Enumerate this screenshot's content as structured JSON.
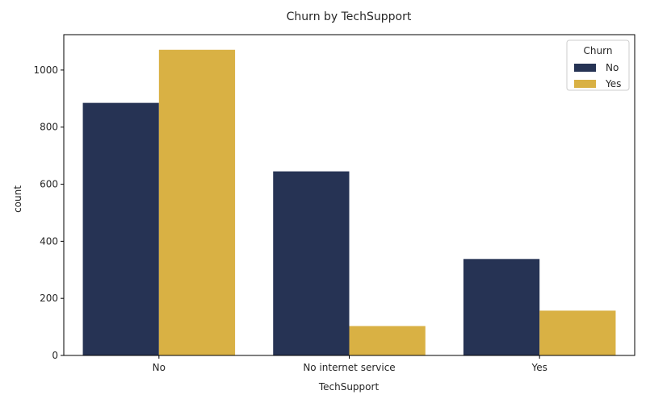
{
  "chart_data": {
    "type": "bar",
    "title": "Churn by TechSupport",
    "xlabel": "TechSupport",
    "ylabel": "count",
    "categories": [
      "No",
      "No internet service",
      "Yes"
    ],
    "series": [
      {
        "name": "No",
        "values": [
          885,
          645,
          338
        ],
        "color": "#263354"
      },
      {
        "name": "Yes",
        "values": [
          1071,
          103,
          157
        ],
        "color": "#d9b144"
      }
    ],
    "ylim": [
      0,
      1124
    ],
    "yticks": [
      0,
      200,
      400,
      600,
      800,
      1000
    ],
    "legend": {
      "title": "Churn",
      "placement": "top-right"
    },
    "grid": false
  }
}
